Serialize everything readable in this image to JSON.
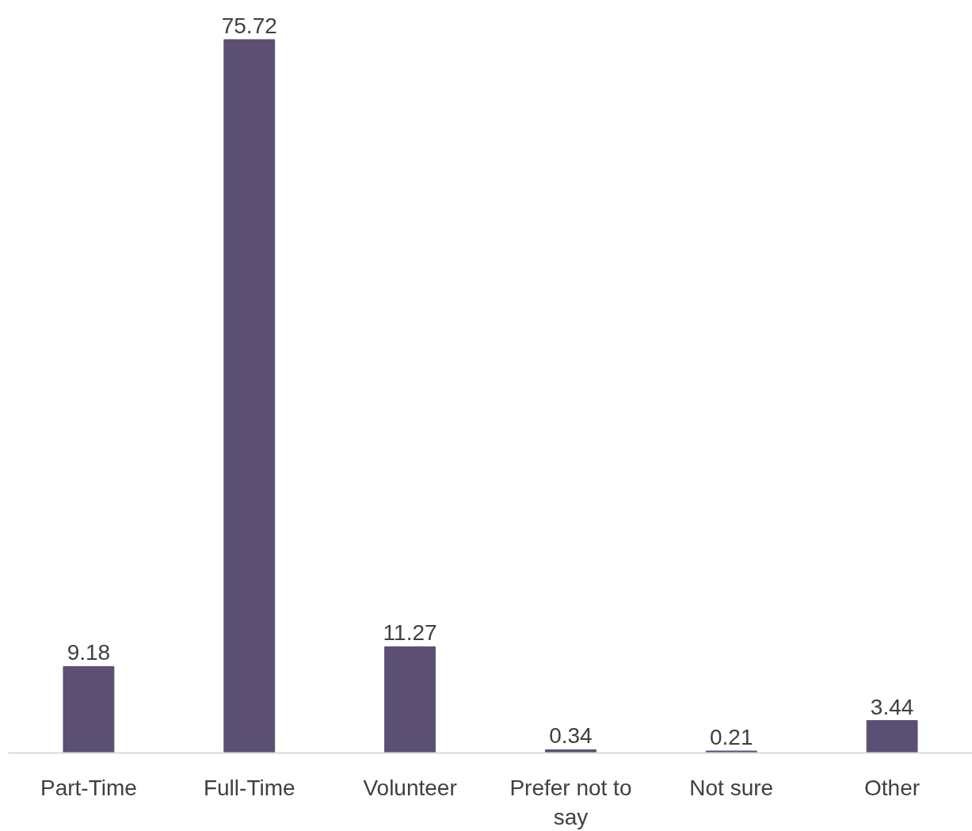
{
  "chart_data": {
    "type": "bar",
    "categories": [
      "Part-Time",
      "Full-Time",
      "Volunteer",
      "Prefer not to say",
      "Not sure",
      "Other"
    ],
    "values": [
      9.18,
      75.72,
      11.27,
      0.34,
      0.21,
      3.44
    ],
    "color": "#5b5073",
    "data_labels": true
  }
}
